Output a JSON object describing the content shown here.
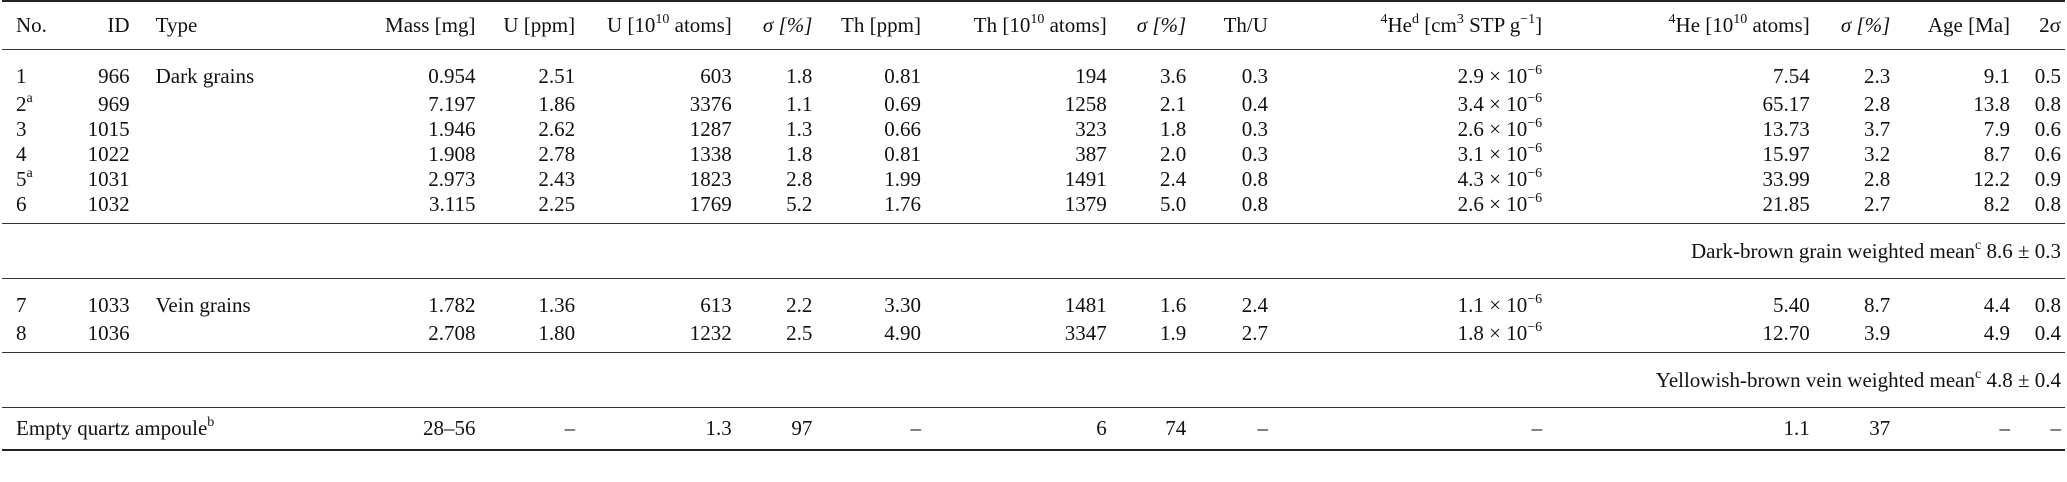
{
  "header": {
    "no": "No.",
    "id": "ID",
    "type": "Type",
    "mass": "Mass [mg]",
    "u_ppm": "U [ppm]",
    "u_atoms_pre": "U [10",
    "u_atoms_exp": "10",
    "u_atoms_post": " atoms]",
    "sigma1": "σ [%]",
    "th_ppm": "Th [ppm]",
    "th_atoms_pre": "Th [10",
    "th_atoms_exp": "10",
    "th_atoms_post": " atoms]",
    "sigma2": "σ [%]",
    "thu": "Th/U",
    "he_sup": "4",
    "he_main": "He",
    "he_sup2": "d",
    "he_unit_pre": " [cm",
    "he_unit_exp": "3",
    "he_unit_mid": " STP g",
    "he_unit_exp2": "−1",
    "he_unit_post": "]",
    "he_atoms_sup": "4",
    "he_atoms_pre": "He [10",
    "he_atoms_exp": "10",
    "he_atoms_post": " atoms]",
    "sigma3": "σ [%]",
    "age": "Age [Ma]",
    "two_sigma": "2σ"
  },
  "dark_rows": [
    {
      "no": "1",
      "no_sup": "",
      "id": "966",
      "type": "Dark grains",
      "mass": "0.954",
      "u_ppm": "2.51",
      "u_atoms": "603",
      "s1": "1.8",
      "th_ppm": "0.81",
      "th_atoms": "194",
      "s2": "3.6",
      "thu": "0.3",
      "he_base": "2.9 × 10",
      "he_exp": "−6",
      "he_atoms": "7.54",
      "s3": "2.3",
      "age": "9.1",
      "two_sigma": "0.5"
    },
    {
      "no": "2",
      "no_sup": "a",
      "id": "969",
      "type": "",
      "mass": "7.197",
      "u_ppm": "1.86",
      "u_atoms": "3376",
      "s1": "1.1",
      "th_ppm": "0.69",
      "th_atoms": "1258",
      "s2": "2.1",
      "thu": "0.4",
      "he_base": "3.4 × 10",
      "he_exp": "−6",
      "he_atoms": "65.17",
      "s3": "2.8",
      "age": "13.8",
      "two_sigma": "0.8"
    },
    {
      "no": "3",
      "no_sup": "",
      "id": "1015",
      "type": "",
      "mass": "1.946",
      "u_ppm": "2.62",
      "u_atoms": "1287",
      "s1": "1.3",
      "th_ppm": "0.66",
      "th_atoms": "323",
      "s2": "1.8",
      "thu": "0.3",
      "he_base": "2.6 × 10",
      "he_exp": "−6",
      "he_atoms": "13.73",
      "s3": "3.7",
      "age": "7.9",
      "two_sigma": "0.6"
    },
    {
      "no": "4",
      "no_sup": "",
      "id": "1022",
      "type": "",
      "mass": "1.908",
      "u_ppm": "2.78",
      "u_atoms": "1338",
      "s1": "1.8",
      "th_ppm": "0.81",
      "th_atoms": "387",
      "s2": "2.0",
      "thu": "0.3",
      "he_base": "3.1 × 10",
      "he_exp": "−6",
      "he_atoms": "15.97",
      "s3": "3.2",
      "age": "8.7",
      "two_sigma": "0.6"
    },
    {
      "no": "5",
      "no_sup": "a",
      "id": "1031",
      "type": "",
      "mass": "2.973",
      "u_ppm": "2.43",
      "u_atoms": "1823",
      "s1": "2.8",
      "th_ppm": "1.99",
      "th_atoms": "1491",
      "s2": "2.4",
      "thu": "0.8",
      "he_base": "4.3 × 10",
      "he_exp": "−6",
      "he_atoms": "33.99",
      "s3": "2.8",
      "age": "12.2",
      "two_sigma": "0.9"
    },
    {
      "no": "6",
      "no_sup": "",
      "id": "1032",
      "type": "",
      "mass": "3.115",
      "u_ppm": "2.25",
      "u_atoms": "1769",
      "s1": "5.2",
      "th_ppm": "1.76",
      "th_atoms": "1379",
      "s2": "5.0",
      "thu": "0.8",
      "he_base": "2.6 × 10",
      "he_exp": "−6",
      "he_atoms": "21.85",
      "s3": "2.7",
      "age": "8.2",
      "two_sigma": "0.8"
    }
  ],
  "dark_mean": {
    "label": "Dark-brown grain weighted mean",
    "sup": "c",
    "value": " 8.6 ± 0.3"
  },
  "vein_rows": [
    {
      "no": "7",
      "no_sup": "",
      "id": "1033",
      "type": "Vein grains",
      "mass": "1.782",
      "u_ppm": "1.36",
      "u_atoms": "613",
      "s1": "2.2",
      "th_ppm": "3.30",
      "th_atoms": "1481",
      "s2": "1.6",
      "thu": "2.4",
      "he_base": "1.1 × 10",
      "he_exp": "−6",
      "he_atoms": "5.40",
      "s3": "8.7",
      "age": "4.4",
      "two_sigma": "0.8"
    },
    {
      "no": "8",
      "no_sup": "",
      "id": "1036",
      "type": "",
      "mass": "2.708",
      "u_ppm": "1.80",
      "u_atoms": "1232",
      "s1": "2.5",
      "th_ppm": "4.90",
      "th_atoms": "3347",
      "s2": "1.9",
      "thu": "2.7",
      "he_base": "1.8 × 10",
      "he_exp": "−6",
      "he_atoms": "12.70",
      "s3": "3.9",
      "age": "4.9",
      "two_sigma": "0.4"
    }
  ],
  "vein_mean": {
    "label": "Yellowish-brown vein weighted mean",
    "sup": "c",
    "value": " 4.8 ± 0.4"
  },
  "blank": {
    "label": "Empty quartz ampoule",
    "sup": "b",
    "mass": "28–56",
    "u_ppm": "–",
    "u_atoms": "1.3",
    "s1": "97",
    "th_ppm": "–",
    "th_atoms": "6",
    "s2": "74",
    "thu": "–",
    "he": "–",
    "he_atoms": "1.1",
    "s3": "37",
    "age": "–",
    "two_sigma": "–"
  }
}
